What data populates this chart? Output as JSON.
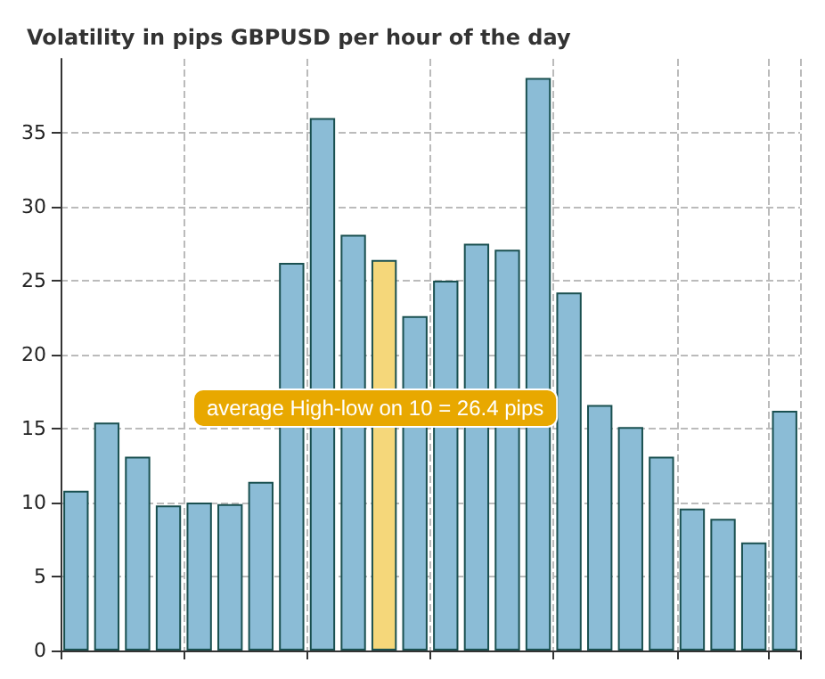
{
  "chart_data": {
    "type": "bar",
    "title": "Volatility in pips GBPUSD per hour of the day",
    "categories": [
      null,
      null,
      null,
      null,
      null,
      null,
      null,
      null,
      null,
      null,
      null,
      null,
      null,
      null,
      null,
      null,
      null,
      null,
      null,
      null,
      null,
      null,
      null,
      null
    ],
    "values": [
      10.8,
      15.4,
      13.1,
      9.8,
      10.0,
      9.9,
      11.4,
      26.2,
      36.0,
      28.1,
      26.4,
      22.6,
      25.0,
      27.5,
      27.1,
      38.7,
      24.2,
      16.6,
      15.1,
      13.1,
      9.6,
      8.9,
      7.3,
      16.2
    ],
    "colors": [
      "#8bbcd6",
      "#8bbcd6",
      "#8bbcd6",
      "#8bbcd6",
      "#8bbcd6",
      "#8bbcd6",
      "#8bbcd6",
      "#8bbcd6",
      "#8bbcd6",
      "#8bbcd6",
      "#f5d77a",
      "#8bbcd6",
      "#8bbcd6",
      "#8bbcd6",
      "#8bbcd6",
      "#8bbcd6",
      "#8bbcd6",
      "#8bbcd6",
      "#8bbcd6",
      "#8bbcd6",
      "#8bbcd6",
      "#8bbcd6",
      "#8bbcd6",
      "#8bbcd6"
    ],
    "ylim": [
      0,
      40
    ],
    "yticks": [
      0,
      5,
      10,
      15,
      20,
      25,
      30,
      35
    ],
    "grid": true,
    "annotations": [
      "average High-low on 10 = 26.4 pips"
    ]
  }
}
